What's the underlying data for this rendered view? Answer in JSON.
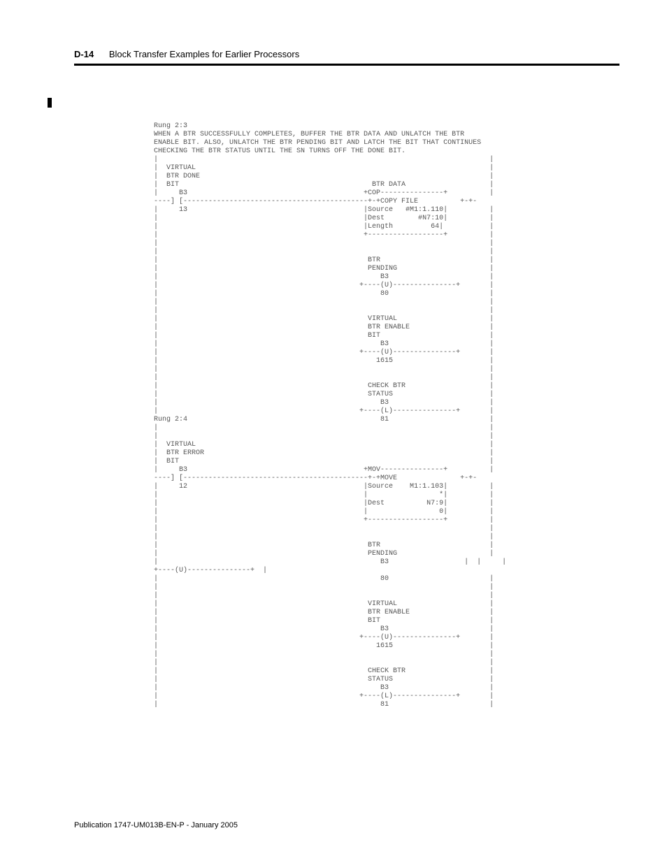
{
  "header": {
    "page_number": "D-14",
    "title": "Block Transfer Examples for Earlier Processors"
  },
  "footer": {
    "publication": "Publication 1747-UM013B-EN-P - January 2005"
  },
  "code": {
    "text": "Rung 2:3\nWHEN A BTR SUCCESSFULLY COMPLETES, BUFFER THE BTR DATA AND UNLATCH THE BTR\nENABLE BIT. ALSO, UNLATCH THE BTR PENDING BIT AND LATCH THE BIT THAT CONTINUES\nCHECKING THE BTR STATUS UNTIL THE SN TURNS OFF THE DONE BIT.\n|                                                                               |\n|  VIRTUAL                                                                      |\n|  BTR DONE                                                                     |\n|  BIT                                              BTR DATA                    |\n|     B3                                          +COP---------------+          |\n----] [--------------------------------------------+-+COPY FILE          +-+-\n|     13                                          |Source   #M1:1.110|          |\n|                                                 |Dest        #N7:10|          |\n|                                                 |Length         64|           |\n|                                                 +------------------+          |\n|                                                                               |\n|                                                                               |\n|                                                  BTR                          |\n|                                                  PENDING                      |\n|                                                     B3                        |\n|                                                +----(U)---------------+       |\n|                                                     80                        |\n|                                                                               |\n|                                                                               |\n|                                                  VIRTUAL                      |\n|                                                  BTR ENABLE                   |\n|                                                  BIT                          |\n|                                                     B3                        |\n|                                                +----(U)---------------+       |\n|                                                    1615                       |\n|                                                                               |\n|                                                                               |\n|                                                  CHECK BTR                    |\n|                                                  STATUS                       |\n|                                                     B3                        |\n|                                                +----(L)---------------+       |\nRung 2:4                                              81                        |\n|                                                                               |\n|                                                                               |\n|  VIRTUAL                                                                      |\n|  BTR ERROR                                                                    |\n|  BIT                                                                          |\n|     B3                                          +MOV---------------+          |\n----] [--------------------------------------------+-+MOVE               +-+-\n|     12                                          |Source    M1:1.103|          |\n|                                                 |                 *|          |\n|                                                 |Dest          N7:9|          |\n|                                                 |                 0|          |\n|                                                 +------------------+          |\n|                                                                               |\n|                                                                               |\n|                                                  BTR                          |\n|                                                  PENDING                      |\n|                                                     B3                  |  |     |\n+----(U)---------------+  |\n|                                                     80                        |\n|                                                                               |\n|                                                                               |\n|                                                  VIRTUAL                      |\n|                                                  BTR ENABLE                   |\n|                                                  BIT                          |\n|                                                     B3                        |\n|                                                +----(U)---------------+       |\n|                                                    1615                       |\n|                                                                               |\n|                                                                               |\n|                                                  CHECK BTR                    |\n|                                                  STATUS                       |\n|                                                     B3                        |\n|                                                +----(L)---------------+       |\n|                                                     81                        |"
  }
}
